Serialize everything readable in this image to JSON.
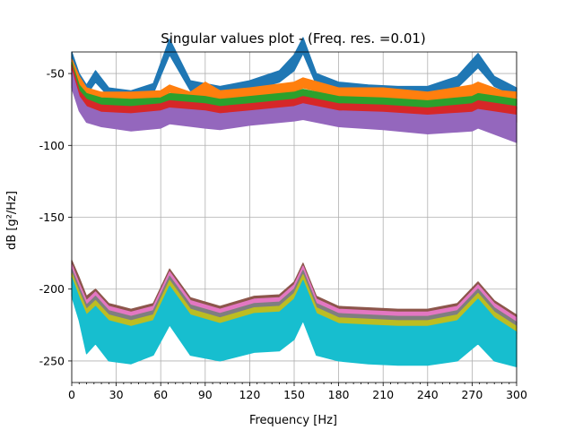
{
  "chart_data": {
    "type": "line",
    "title": "Singular values plot - (Freq. res. =0.01)",
    "xlabel": "Frequency [Hz]",
    "ylabel": "dB [g²/Hz]",
    "xlim": [
      0,
      300
    ],
    "ylim": [
      -265,
      -35
    ],
    "xticks": [
      0,
      30,
      60,
      90,
      120,
      150,
      180,
      210,
      240,
      270,
      300
    ],
    "yticks": [
      -50,
      -100,
      -150,
      -200,
      -250
    ],
    "grid": true,
    "legend": "none",
    "colors": [
      "#1f77b4",
      "#ff7f0e",
      "#2ca02c",
      "#d62728",
      "#9467bd",
      "#8c564b",
      "#e377c2",
      "#7f7f7f",
      "#bcbd22",
      "#17becf"
    ],
    "series": [
      {
        "x": [
          0,
          5,
          10,
          16,
          25,
          40,
          55,
          66,
          80,
          100,
          120,
          140,
          150,
          156,
          165,
          180,
          200,
          220,
          240,
          260,
          274,
          285,
          300
        ],
        "upper": [
          -35,
          -50,
          -58,
          -48,
          -60,
          -62,
          -57,
          -26,
          -55,
          -59,
          -55,
          -48,
          -37,
          -25,
          -50,
          -56,
          -58,
          -59,
          -59,
          -52,
          -36,
          -52,
          -60
        ],
        "lower": [
          -40,
          -57,
          -65,
          -56,
          -66,
          -68,
          -64,
          -37,
          -62,
          -65,
          -62,
          -56,
          -48,
          -36,
          -58,
          -62,
          -64,
          -66,
          -66,
          -60,
          -46,
          -59,
          -66
        ]
      },
      {
        "x": [
          0,
          5,
          10,
          20,
          40,
          60,
          66,
          80,
          90,
          100,
          120,
          150,
          156,
          180,
          210,
          240,
          270,
          274,
          290,
          300
        ],
        "upper": [
          -40,
          -52,
          -60,
          -63,
          -63,
          -62,
          -58,
          -63,
          -56,
          -62,
          -60,
          -56,
          -53,
          -60,
          -60,
          -63,
          -58,
          -56,
          -62,
          -63
        ],
        "lower": [
          -45,
          -58,
          -64,
          -68,
          -69,
          -68,
          -63,
          -68,
          -66,
          -68,
          -67,
          -63,
          -60,
          -66,
          -67,
          -70,
          -66,
          -65,
          -68,
          -72
        ]
      },
      {
        "x": [
          0,
          5,
          10,
          20,
          40,
          60,
          66,
          90,
          100,
          120,
          150,
          156,
          180,
          210,
          240,
          270,
          274,
          300
        ],
        "upper": [
          -42,
          -58,
          -64,
          -67,
          -68,
          -67,
          -64,
          -66,
          -68,
          -66,
          -63,
          -61,
          -66,
          -67,
          -69,
          -66,
          -64,
          -68
        ],
        "lower": [
          -48,
          -62,
          -69,
          -72,
          -73,
          -72,
          -69,
          -72,
          -73,
          -71,
          -69,
          -67,
          -71,
          -73,
          -76,
          -72,
          -70,
          -75
        ]
      },
      {
        "x": [
          0,
          5,
          10,
          20,
          40,
          60,
          66,
          90,
          100,
          120,
          150,
          156,
          180,
          210,
          240,
          270,
          274,
          300
        ],
        "upper": [
          -44,
          -62,
          -68,
          -72,
          -73,
          -71,
          -69,
          -71,
          -73,
          -71,
          -68,
          -66,
          -71,
          -72,
          -74,
          -71,
          -69,
          -73
        ],
        "lower": [
          -52,
          -68,
          -76,
          -79,
          -81,
          -80,
          -77,
          -80,
          -81,
          -79,
          -76,
          -75,
          -79,
          -81,
          -83,
          -80,
          -78,
          -84
        ]
      },
      {
        "x": [
          0,
          5,
          10,
          20,
          40,
          60,
          66,
          90,
          100,
          120,
          150,
          156,
          180,
          210,
          240,
          270,
          274,
          300
        ],
        "upper": [
          -48,
          -66,
          -73,
          -77,
          -78,
          -76,
          -74,
          -76,
          -78,
          -76,
          -73,
          -71,
          -76,
          -77,
          -79,
          -77,
          -75,
          -79
        ],
        "lower": [
          -60,
          -76,
          -84,
          -87,
          -90,
          -88,
          -85,
          -88,
          -89,
          -86,
          -83,
          -82,
          -87,
          -89,
          -92,
          -90,
          -88,
          -98
        ]
      },
      {
        "x": [
          0,
          5,
          10,
          16,
          25,
          40,
          55,
          66,
          80,
          100,
          123,
          140,
          150,
          156,
          165,
          180,
          200,
          220,
          240,
          260,
          274,
          285,
          300
        ],
        "upper": [
          -180,
          -192,
          -205,
          -200,
          -210,
          -214,
          -210,
          -186,
          -206,
          -212,
          -205,
          -204,
          -195,
          -182,
          -205,
          -212,
          -213,
          -214,
          -214,
          -210,
          -195,
          -208,
          -218
        ],
        "lower": [
          -186,
          -198,
          -212,
          -207,
          -216,
          -220,
          -216,
          -193,
          -213,
          -218,
          -212,
          -211,
          -202,
          -189,
          -212,
          -218,
          -219,
          -220,
          -221,
          -217,
          -202,
          -215,
          -224
        ]
      },
      {
        "x": [
          0,
          5,
          10,
          16,
          25,
          40,
          55,
          66,
          80,
          100,
          123,
          140,
          150,
          156,
          165,
          180,
          200,
          220,
          240,
          260,
          274,
          285,
          300
        ],
        "upper": [
          -183,
          -196,
          -208,
          -202,
          -212,
          -216,
          -212,
          -188,
          -208,
          -214,
          -207,
          -206,
          -197,
          -184,
          -207,
          -214,
          -215,
          -216,
          -216,
          -212,
          -197,
          -210,
          -220
        ],
        "lower": [
          -190,
          -202,
          -215,
          -209,
          -219,
          -222,
          -218,
          -196,
          -215,
          -220,
          -214,
          -213,
          -205,
          -192,
          -215,
          -221,
          -222,
          -223,
          -223,
          -220,
          -205,
          -218,
          -227
        ]
      },
      {
        "x": [
          0,
          5,
          10,
          16,
          25,
          40,
          55,
          66,
          80,
          100,
          123,
          140,
          150,
          156,
          165,
          180,
          200,
          220,
          240,
          260,
          274,
          285,
          300
        ],
        "upper": [
          -186,
          -199,
          -211,
          -205,
          -215,
          -219,
          -215,
          -191,
          -211,
          -217,
          -210,
          -209,
          -200,
          -187,
          -210,
          -217,
          -218,
          -219,
          -219,
          -215,
          -200,
          -213,
          -223
        ],
        "lower": [
          -193,
          -206,
          -219,
          -213,
          -223,
          -226,
          -222,
          -200,
          -219,
          -224,
          -218,
          -217,
          -209,
          -196,
          -219,
          -225,
          -226,
          -227,
          -227,
          -224,
          -209,
          -222,
          -231
        ]
      },
      {
        "x": [
          0,
          5,
          10,
          16,
          25,
          40,
          55,
          66,
          80,
          100,
          123,
          140,
          150,
          156,
          165,
          180,
          200,
          220,
          240,
          260,
          274,
          285,
          300
        ],
        "upper": [
          -189,
          -202,
          -214,
          -208,
          -218,
          -222,
          -218,
          -194,
          -214,
          -220,
          -213,
          -212,
          -203,
          -190,
          -213,
          -220,
          -221,
          -222,
          -222,
          -218,
          -203,
          -216,
          -226
        ],
        "lower": [
          -197,
          -210,
          -223,
          -217,
          -227,
          -230,
          -226,
          -204,
          -223,
          -228,
          -222,
          -221,
          -213,
          -200,
          -223,
          -229,
          -230,
          -231,
          -231,
          -228,
          -213,
          -226,
          -235
        ]
      },
      {
        "x": [
          0,
          5,
          10,
          16,
          25,
          40,
          55,
          66,
          80,
          100,
          123,
          140,
          150,
          156,
          165,
          180,
          200,
          220,
          240,
          260,
          274,
          285,
          300
        ],
        "upper": [
          -192,
          -206,
          -218,
          -212,
          -222,
          -226,
          -222,
          -198,
          -218,
          -224,
          -217,
          -216,
          -207,
          -194,
          -217,
          -224,
          -225,
          -226,
          -226,
          -222,
          -207,
          -220,
          -230
        ],
        "lower": [
          -205,
          -222,
          -245,
          -238,
          -250,
          -252,
          -246,
          -225,
          -246,
          -250,
          -244,
          -243,
          -235,
          -222,
          -246,
          -250,
          -252,
          -253,
          -253,
          -250,
          -238,
          -250,
          -254
        ]
      }
    ]
  }
}
